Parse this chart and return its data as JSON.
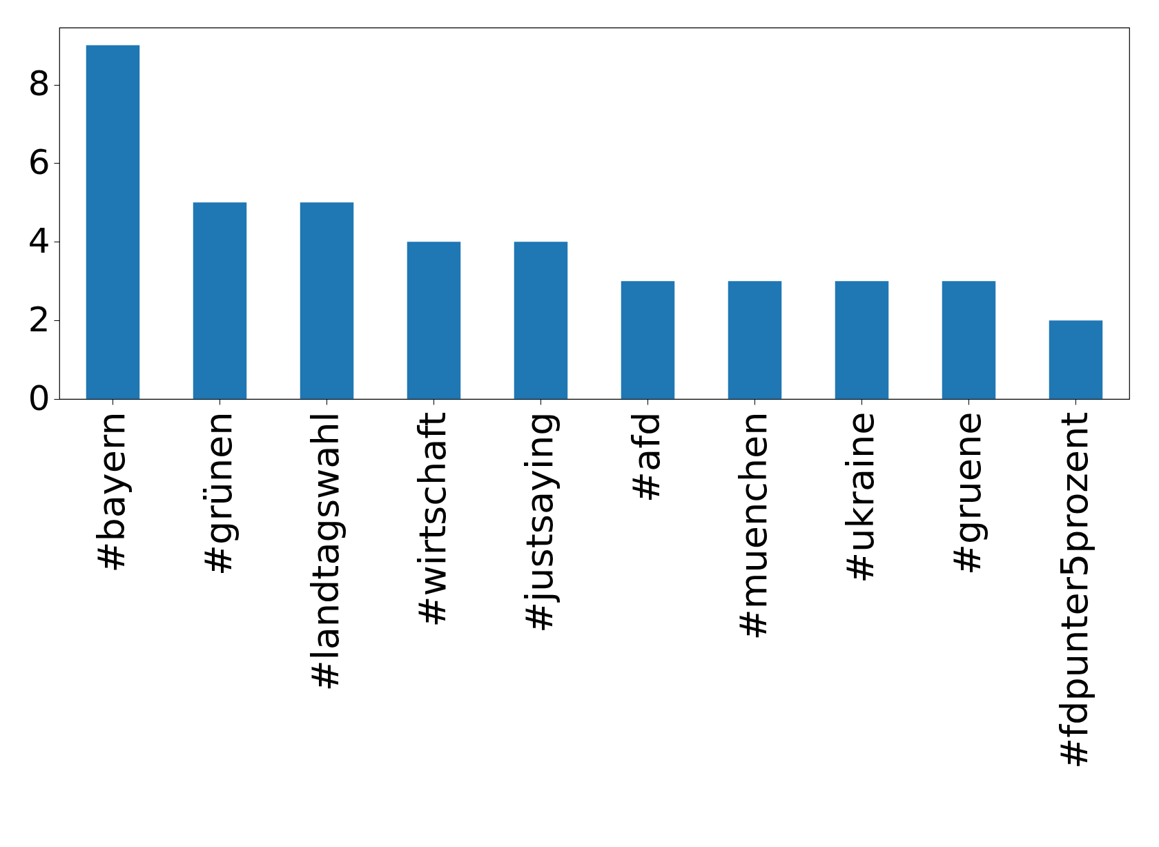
{
  "chart_data": {
    "type": "bar",
    "categories": [
      "#bayern",
      "#grünen",
      "#landtagswahl",
      "#wirtschaft",
      "#justsaying",
      "#afd",
      "#muenchen",
      "#ukraine",
      "#gruene",
      "#fdpunter5prozent"
    ],
    "values": [
      9,
      5,
      5,
      4,
      4,
      3,
      3,
      3,
      3,
      2
    ],
    "color": "#1f77b4",
    "ylim": [
      0,
      9.45
    ],
    "yticks": [
      0,
      2,
      4,
      6,
      8
    ],
    "grid": false
  }
}
